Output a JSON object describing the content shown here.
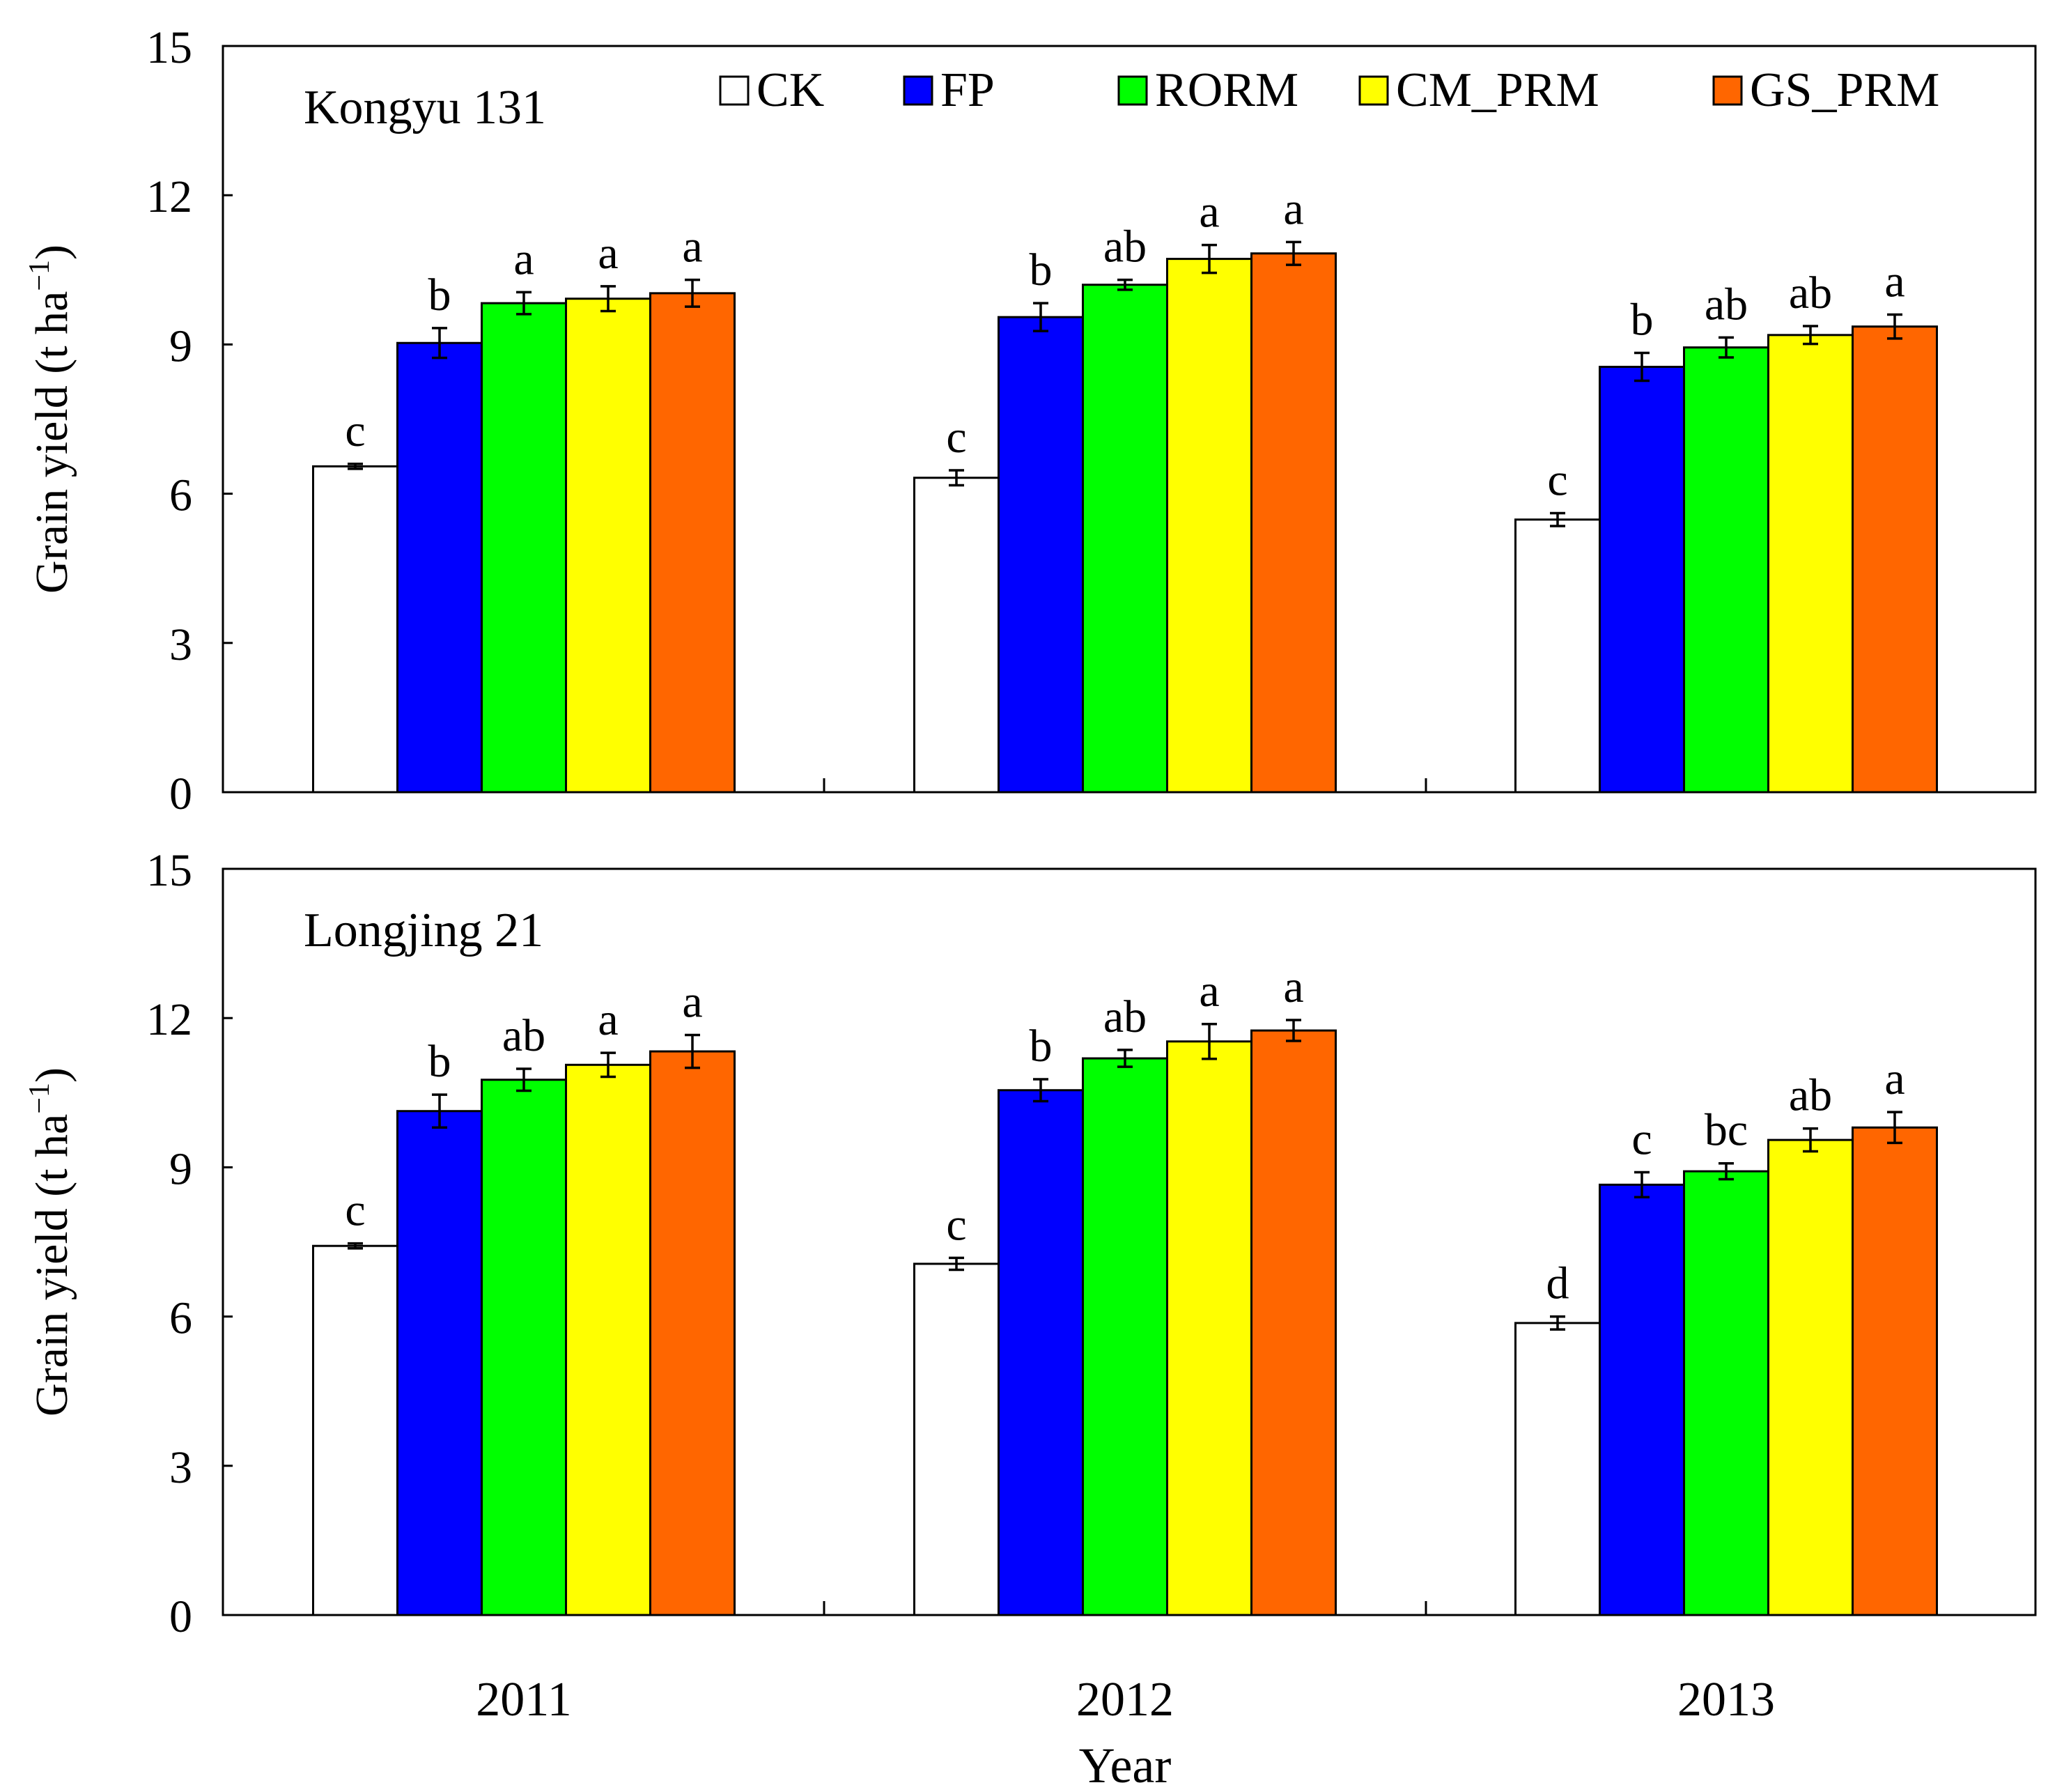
{
  "chart_data": [
    {
      "type": "bar",
      "title": "Kongyu 131",
      "ylabel": "Grain yield (t ha",
      "ylabel_sup": "−1",
      "ylabel_close": ")",
      "ylim": [
        0,
        15
      ],
      "yticks": [
        0,
        3,
        6,
        9,
        12,
        15
      ],
      "categories": [
        "2011",
        "2012",
        "2013"
      ],
      "series": [
        {
          "name": "CK",
          "color": "#ffffff",
          "values": [
            6.55,
            6.32,
            5.48
          ],
          "errors": [
            0.05,
            0.15,
            0.13
          ],
          "letters": [
            "c",
            "c",
            "c"
          ]
        },
        {
          "name": "FP",
          "color": "#0000ff",
          "values": [
            9.03,
            9.55,
            8.55
          ],
          "errors": [
            0.3,
            0.28,
            0.28
          ],
          "letters": [
            "b",
            "b",
            "b"
          ]
        },
        {
          "name": "RORM",
          "color": "#00ff00",
          "values": [
            9.83,
            10.2,
            8.94
          ],
          "errors": [
            0.22,
            0.1,
            0.2
          ],
          "letters": [
            "a",
            "ab",
            "ab"
          ]
        },
        {
          "name": "CM_PRM",
          "color": "#ffff00",
          "values": [
            9.92,
            10.72,
            9.19
          ],
          "errors": [
            0.25,
            0.28,
            0.18
          ],
          "letters": [
            "a",
            "a",
            "ab"
          ]
        },
        {
          "name": "GS_PRM",
          "color": "#ff6600",
          "values": [
            10.03,
            10.83,
            9.36
          ],
          "errors": [
            0.27,
            0.23,
            0.24
          ],
          "letters": [
            "a",
            "a",
            "a"
          ]
        }
      ]
    },
    {
      "type": "bar",
      "title": "Longjing 21",
      "ylabel": "Grain yield (t ha",
      "ylabel_sup": "−1",
      "ylabel_close": ")",
      "ylim": [
        0,
        15
      ],
      "yticks": [
        0,
        3,
        6,
        9,
        12,
        15
      ],
      "categories": [
        "2011",
        "2012",
        "2013"
      ],
      "series": [
        {
          "name": "CK",
          "color": "#ffffff",
          "values": [
            7.42,
            7.06,
            5.87
          ],
          "errors": [
            0.05,
            0.12,
            0.13
          ],
          "letters": [
            "c",
            "c",
            "d"
          ]
        },
        {
          "name": "FP",
          "color": "#0000ff",
          "values": [
            10.13,
            10.55,
            8.65
          ],
          "errors": [
            0.33,
            0.22,
            0.25
          ],
          "letters": [
            "b",
            "b",
            "c"
          ]
        },
        {
          "name": "RORM",
          "color": "#00ff00",
          "values": [
            10.76,
            11.19,
            8.92
          ],
          "errors": [
            0.22,
            0.17,
            0.16
          ],
          "letters": [
            "ab",
            "ab",
            "bc"
          ]
        },
        {
          "name": "CM_PRM",
          "color": "#ffff00",
          "values": [
            11.06,
            11.53,
            9.55
          ],
          "errors": [
            0.24,
            0.35,
            0.23
          ],
          "letters": [
            "a",
            "a",
            "ab"
          ]
        },
        {
          "name": "GS_PRM",
          "color": "#ff6600",
          "values": [
            11.33,
            11.75,
            9.8
          ],
          "errors": [
            0.33,
            0.21,
            0.31
          ],
          "letters": [
            "a",
            "a",
            "a"
          ]
        }
      ]
    }
  ],
  "xlabel": "Year"
}
